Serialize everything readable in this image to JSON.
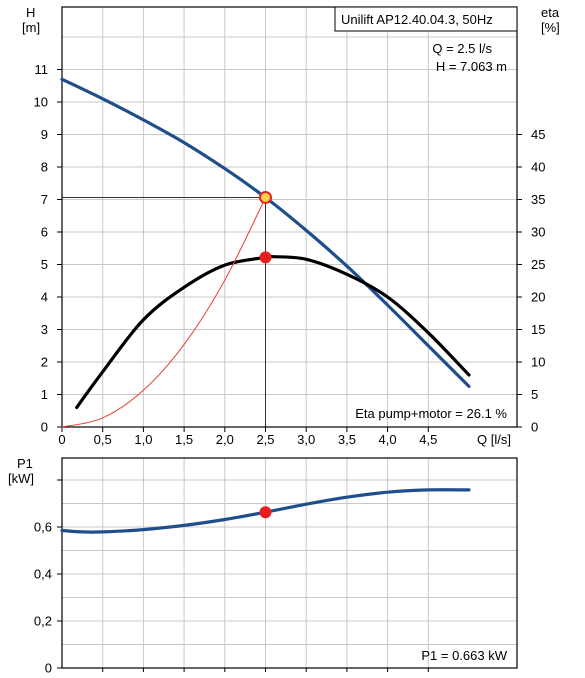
{
  "chart_data": [
    {
      "type": "line",
      "title": "Unilift AP12.40.04.3, 50Hz",
      "xlabel": "Q [l/s]",
      "ylabel": "H",
      "ylabel_unit": "[m]",
      "y2label": "eta",
      "y2label_unit": "[%]",
      "xlim": [
        0,
        5
      ],
      "ylim": [
        0,
        12
      ],
      "y2lim": [
        0,
        60
      ],
      "x_ticks": [
        "0",
        "0,5",
        "1,0",
        "1,5",
        "2,0",
        "2,5",
        "3,0",
        "3,5",
        "4,0",
        "4,5"
      ],
      "x_tick_values": [
        0,
        0.5,
        1.0,
        1.5,
        2.0,
        2.5,
        3.0,
        3.5,
        4.0,
        4.5
      ],
      "y_ticks": [
        "0",
        "1",
        "2",
        "3",
        "4",
        "5",
        "6",
        "7",
        "8",
        "9",
        "10",
        "11"
      ],
      "y_tick_values": [
        0,
        1,
        2,
        3,
        4,
        5,
        6,
        7,
        8,
        9,
        10,
        11
      ],
      "y2_ticks": [
        "0",
        "5",
        "10",
        "15",
        "20",
        "25",
        "30",
        "35",
        "40",
        "45"
      ],
      "y2_tick_values": [
        0,
        5,
        10,
        15,
        20,
        25,
        30,
        35,
        40,
        45
      ],
      "grid": true,
      "info_lines": [
        "Q = 2.5 l/s",
        "H = 7.063 m"
      ],
      "footer_label": "Eta pump+motor = 26.1 %",
      "series": [
        {
          "key": "head",
          "axis": "left",
          "color": "#1f4e8c",
          "x": [
            0,
            0.5,
            1.0,
            1.5,
            2.0,
            2.5,
            3.0,
            3.5,
            4.0,
            4.5,
            5.0
          ],
          "y": [
            10.7,
            10.1,
            9.45,
            8.75,
            7.95,
            7.063,
            6.05,
            4.95,
            3.75,
            2.5,
            1.25
          ]
        },
        {
          "key": "eta",
          "axis": "right",
          "color": "#000000",
          "x": [
            0.18,
            0.5,
            1.0,
            1.5,
            2.0,
            2.5,
            2.6,
            3.0,
            3.5,
            4.0,
            4.5,
            5.0
          ],
          "y": [
            3,
            8.5,
            16.5,
            21.5,
            24.9,
            26.1,
            26.2,
            25.8,
            23.5,
            20,
            14.5,
            8
          ]
        },
        {
          "key": "operating-line",
          "axis": "left",
          "color": "#e34234",
          "x": [
            0,
            0.5,
            1.0,
            1.5,
            2.0,
            2.5
          ],
          "y": [
            0,
            0.28,
            1.13,
            2.54,
            4.52,
            7.063
          ]
        }
      ],
      "points": [
        {
          "key": "duty-head",
          "axis": "left",
          "x": 2.5,
          "y": 7.063,
          "fill": "#ffd24d",
          "stroke": "#e32222"
        },
        {
          "key": "duty-eta",
          "axis": "right",
          "x": 2.5,
          "y": 26.1,
          "fill": "#e81e1e",
          "stroke": "#e81e1e"
        }
      ]
    },
    {
      "type": "line",
      "xlabel": "",
      "ylabel": "P1",
      "ylabel_unit": "[kW]",
      "xlim": [
        0,
        5
      ],
      "ylim": [
        0,
        0.85
      ],
      "y_ticks": [
        "0",
        "0,2",
        "0,4",
        "0,6"
      ],
      "y_tick_values": [
        0,
        0.2,
        0.4,
        0.6
      ],
      "grid": true,
      "footer_label": "P1 = 0.663 kW",
      "series": [
        {
          "key": "power",
          "color": "#1f4e8c",
          "x": [
            0,
            0.25,
            0.5,
            1.0,
            1.5,
            2.0,
            2.5,
            3.0,
            3.5,
            4.0,
            4.5,
            5.0
          ],
          "y": [
            0.585,
            0.579,
            0.579,
            0.589,
            0.607,
            0.632,
            0.663,
            0.697,
            0.727,
            0.748,
            0.758,
            0.758
          ]
        }
      ],
      "points": [
        {
          "key": "duty-power",
          "x": 2.5,
          "y": 0.663,
          "fill": "#e81e1e",
          "stroke": "#e81e1e"
        }
      ]
    }
  ]
}
